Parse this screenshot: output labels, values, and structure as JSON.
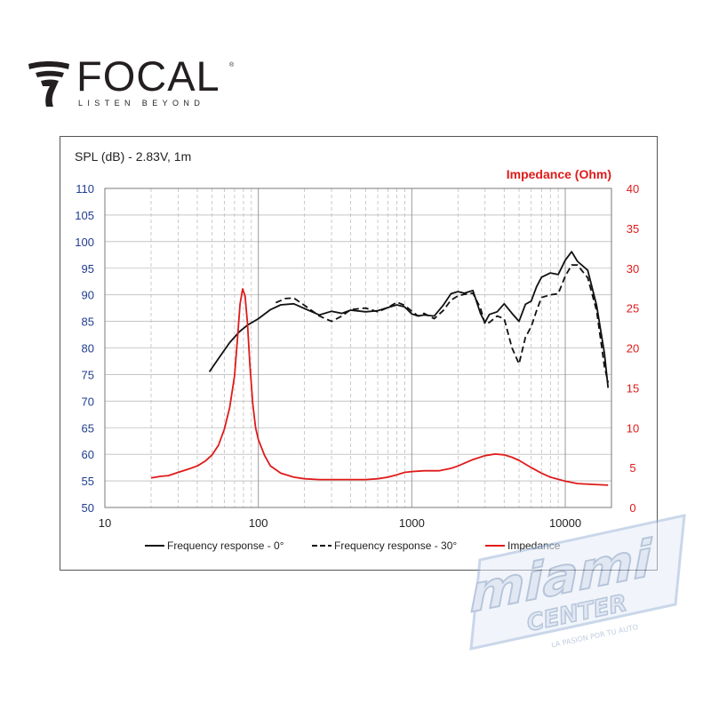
{
  "brand": {
    "name": "FOCAL",
    "reg_mark": "®",
    "tagline": "LISTEN BEYOND"
  },
  "watermark": {
    "word": "miami",
    "sub": "CENTER",
    "slogan": "LA PASION POR TU AUTO"
  },
  "colors": {
    "spl_axis": "#1f3d8f",
    "impedance": "#e01a1a",
    "response": "#111111",
    "grid": "#bdbdbd"
  },
  "chart_data": {
    "type": "line",
    "title_left": "SPL (dB) - 2.83V, 1m",
    "title_right": "Impedance (Ohm)",
    "x_scale": "log",
    "xlim": [
      10,
      20000
    ],
    "x_ticks": [
      10,
      100,
      1000,
      10000
    ],
    "x_tick_labels": [
      "10",
      "100",
      "1000",
      "10000"
    ],
    "ylim_left": [
      50,
      110
    ],
    "y_ticks_left": [
      50,
      55,
      60,
      65,
      70,
      75,
      80,
      85,
      90,
      95,
      100,
      105,
      110
    ],
    "ylim_right": [
      0,
      40
    ],
    "y_ticks_right": [
      0,
      5,
      10,
      15,
      20,
      25,
      30,
      35,
      40
    ],
    "grid": true,
    "legend_position": "bottom",
    "series": [
      {
        "name": "Frequency response - 0°",
        "axis": "left",
        "style": "solid",
        "x": [
          48,
          55,
          65,
          75,
          85,
          100,
          120,
          140,
          170,
          200,
          250,
          300,
          350,
          400,
          500,
          600,
          700,
          800,
          900,
          1000,
          1100,
          1200,
          1400,
          1600,
          1800,
          2000,
          2200,
          2500,
          2800,
          3000,
          3200,
          3600,
          4000,
          4500,
          5000,
          5500,
          6000,
          6500,
          7000,
          8000,
          9000,
          10000,
          11000,
          12000,
          14000,
          16000,
          18000,
          19000
        ],
        "y": [
          75.5,
          78,
          81,
          83,
          84.3,
          85.5,
          87.2,
          88.1,
          88.3,
          87.4,
          86.2,
          86.9,
          86.5,
          87.1,
          86.8,
          87.0,
          87.6,
          88.1,
          87.7,
          86.4,
          86.0,
          86.2,
          86.0,
          88.0,
          90.2,
          90.6,
          90.3,
          90.8,
          86.5,
          84.8,
          86.3,
          86.8,
          88.3,
          86.5,
          85.0,
          88.2,
          88.8,
          91.5,
          93.3,
          94.1,
          93.8,
          96.5,
          98.1,
          96.3,
          94.6,
          88.0,
          79.0,
          72.5
        ]
      },
      {
        "name": "Frequency response - 30°",
        "axis": "left",
        "style": "dashed",
        "x": [
          130,
          150,
          170,
          200,
          250,
          300,
          350,
          400,
          500,
          600,
          700,
          800,
          900,
          1000,
          1100,
          1200,
          1400,
          1600,
          1800,
          2000,
          2200,
          2500,
          2800,
          3000,
          3200,
          3600,
          4000,
          4500,
          5000,
          5500,
          6000,
          6500,
          7000,
          8000,
          9000,
          10000,
          11000,
          12000,
          14000,
          16000,
          18000,
          19000
        ],
        "y": [
          88.5,
          89.3,
          89.4,
          88.0,
          86.0,
          85.0,
          86.0,
          87.2,
          87.5,
          86.8,
          87.6,
          88.6,
          88.0,
          86.9,
          86.0,
          86.5,
          85.5,
          87.0,
          89.0,
          89.8,
          90.1,
          90.3,
          87.5,
          84.5,
          84.8,
          86.0,
          85.5,
          80.0,
          77.0,
          82.0,
          84.0,
          87.0,
          89.5,
          90.0,
          90.2,
          93.5,
          95.6,
          95.6,
          93.2,
          87.0,
          76.5,
          73.5
        ]
      },
      {
        "name": "Impedance",
        "axis": "right",
        "style": "solid",
        "x": [
          20,
          23,
          26,
          30,
          35,
          40,
          45,
          50,
          55,
          60,
          65,
          70,
          73,
          76,
          79,
          82,
          85,
          88,
          92,
          96,
          100,
          110,
          120,
          140,
          170,
          200,
          250,
          300,
          400,
          500,
          600,
          700,
          800,
          900,
          1000,
          1200,
          1500,
          1800,
          2000,
          2500,
          3000,
          3500,
          4000,
          4500,
          5000,
          6000,
          7000,
          8000,
          10000,
          12000,
          15000,
          19000
        ],
        "y": [
          3.7,
          3.9,
          4.0,
          4.4,
          4.8,
          5.2,
          5.8,
          6.6,
          7.8,
          9.8,
          12.5,
          16.5,
          21.0,
          25.5,
          27.4,
          26.5,
          23.0,
          18.0,
          13.0,
          10.0,
          8.5,
          6.5,
          5.2,
          4.3,
          3.8,
          3.6,
          3.5,
          3.5,
          3.5,
          3.5,
          3.6,
          3.8,
          4.1,
          4.4,
          4.5,
          4.6,
          4.6,
          4.9,
          5.2,
          6.0,
          6.5,
          6.7,
          6.6,
          6.3,
          5.9,
          5.0,
          4.3,
          3.8,
          3.3,
          3.0,
          2.9,
          2.8
        ]
      }
    ]
  }
}
